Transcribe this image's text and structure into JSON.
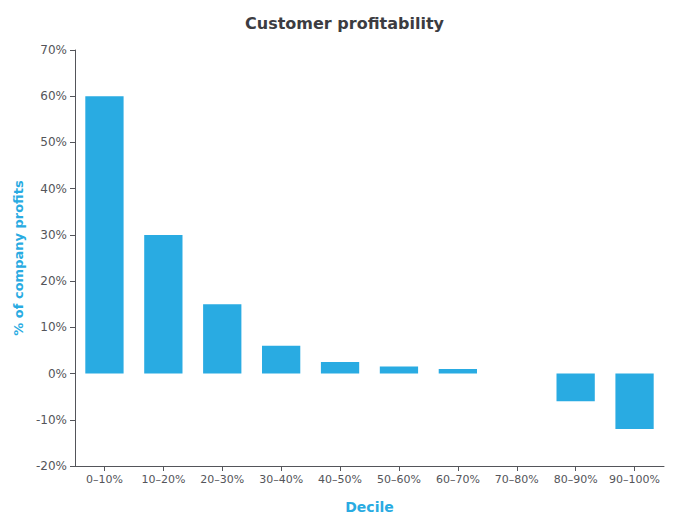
{
  "chart_data": {
    "type": "bar",
    "title": "Customer profitability",
    "xlabel": "Decile",
    "ylabel": "% of company profits",
    "categories": [
      "0–10%",
      "10–20%",
      "20–30%",
      "30–40%",
      "40–50%",
      "50–60%",
      "60–70%",
      "70–80%",
      "80–90%",
      "90–100%"
    ],
    "values": [
      60,
      30,
      15,
      6,
      2.5,
      1.5,
      1,
      0,
      -6,
      -12
    ],
    "color": "#29ABE2",
    "ylim": [
      -20,
      70
    ],
    "yticks": [
      {
        "value": -20,
        "label": "-20%"
      },
      {
        "value": -10,
        "label": "-10%"
      },
      {
        "value": 0,
        "label": "0%"
      },
      {
        "value": 10,
        "label": "10%"
      },
      {
        "value": 20,
        "label": "20%"
      },
      {
        "value": 30,
        "label": "30%"
      },
      {
        "value": 40,
        "label": "40%"
      },
      {
        "value": 50,
        "label": "50%"
      },
      {
        "value": 60,
        "label": "60%"
      },
      {
        "value": 70,
        "label": "70%"
      }
    ],
    "grid": false
  }
}
